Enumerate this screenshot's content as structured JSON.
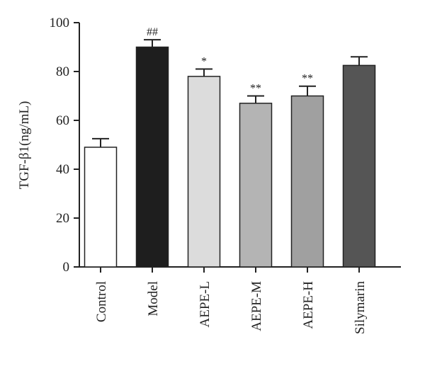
{
  "chart_data": {
    "type": "bar",
    "title": "",
    "xlabel": "",
    "ylabel": "TGF-β1(ng/mL)",
    "ylim": [
      0,
      100
    ],
    "yticks": [
      0,
      20,
      40,
      60,
      80,
      100
    ],
    "grid": false,
    "legend": "none",
    "categories": [
      "Control",
      "Model",
      "AEPE-L",
      "AEPE-M",
      "AEPE-H",
      "Silymarin"
    ],
    "values": [
      49,
      90,
      78,
      67,
      70,
      82.5
    ],
    "errors": [
      3.5,
      3,
      3,
      3,
      4,
      3.5
    ],
    "significance": [
      "",
      "##",
      "*",
      "**",
      "**",
      ""
    ],
    "bar_colors": [
      "#ffffff",
      "#1e1e1e",
      "#dcdcdc",
      "#b4b4b4",
      "#a0a0a0",
      "#555555"
    ]
  }
}
